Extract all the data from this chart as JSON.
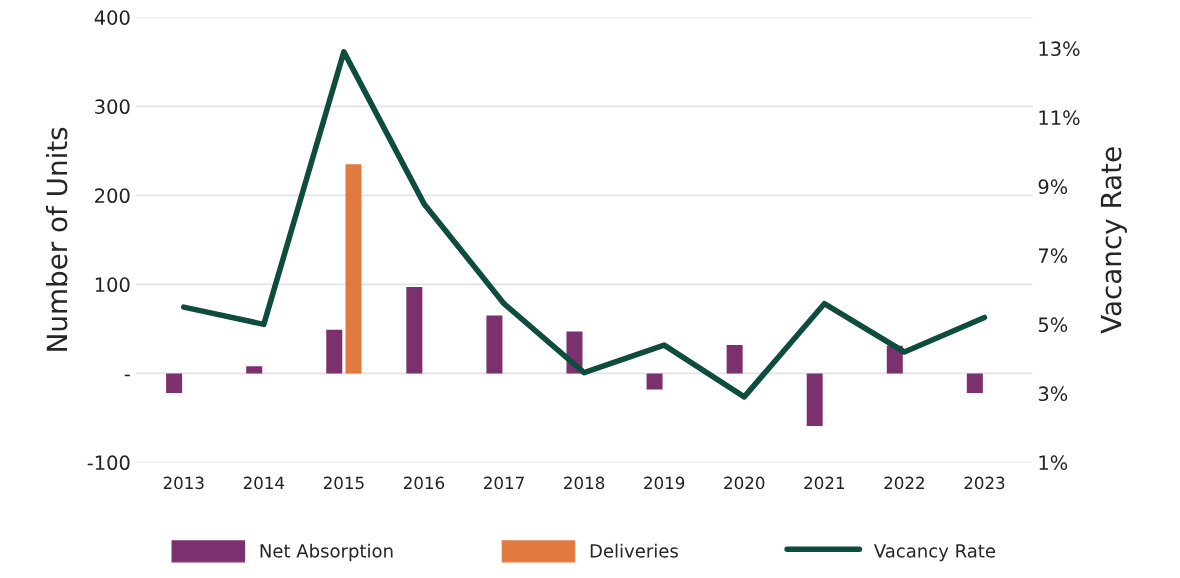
{
  "chart_data": {
    "type": "bar",
    "xlabel": null,
    "ylabel": "Number of Units",
    "y2label": "Vacancy Rate",
    "categories": [
      "2013",
      "2014",
      "2015",
      "2016",
      "2017",
      "2018",
      "2019",
      "2020",
      "2021",
      "2022",
      "2023"
    ],
    "series": [
      {
        "name": "Net Absorption",
        "color": "#7b3170",
        "values": [
          -22,
          8,
          49,
          97,
          65,
          47,
          -18,
          32,
          -59,
          31,
          -22
        ]
      },
      {
        "name": "Deliveries",
        "color": "#e07a3f",
        "values": [
          0,
          0,
          235,
          0,
          0,
          0,
          0,
          0,
          0,
          0,
          0
        ]
      },
      {
        "name": "Vacancy Rate",
        "type": "line",
        "axis": "y2",
        "color": "#0e4d3e",
        "values": [
          5.5,
          5.0,
          12.9,
          8.5,
          5.6,
          3.6,
          4.4,
          2.9,
          5.6,
          4.2,
          5.2
        ]
      }
    ],
    "ylim": [
      -100,
      400
    ],
    "yticks": [
      {
        "value": -100,
        "label": "-100"
      },
      {
        "value": 0,
        "label": "-"
      },
      100,
      200,
      300,
      400
    ],
    "y2lim": [
      1,
      13.9
    ],
    "y2ticks": [
      {
        "value": 1,
        "label": "1%"
      },
      {
        "value": 3,
        "label": "3%"
      },
      {
        "value": 5,
        "label": "5%"
      },
      {
        "value": 7,
        "label": "7%"
      },
      {
        "value": 9,
        "label": "9%"
      },
      {
        "value": 11,
        "label": "11%"
      },
      {
        "value": 13,
        "label": "13%"
      }
    ],
    "grid": "y",
    "legend": "bottom",
    "marker": "none",
    "line_style": "solid"
  }
}
